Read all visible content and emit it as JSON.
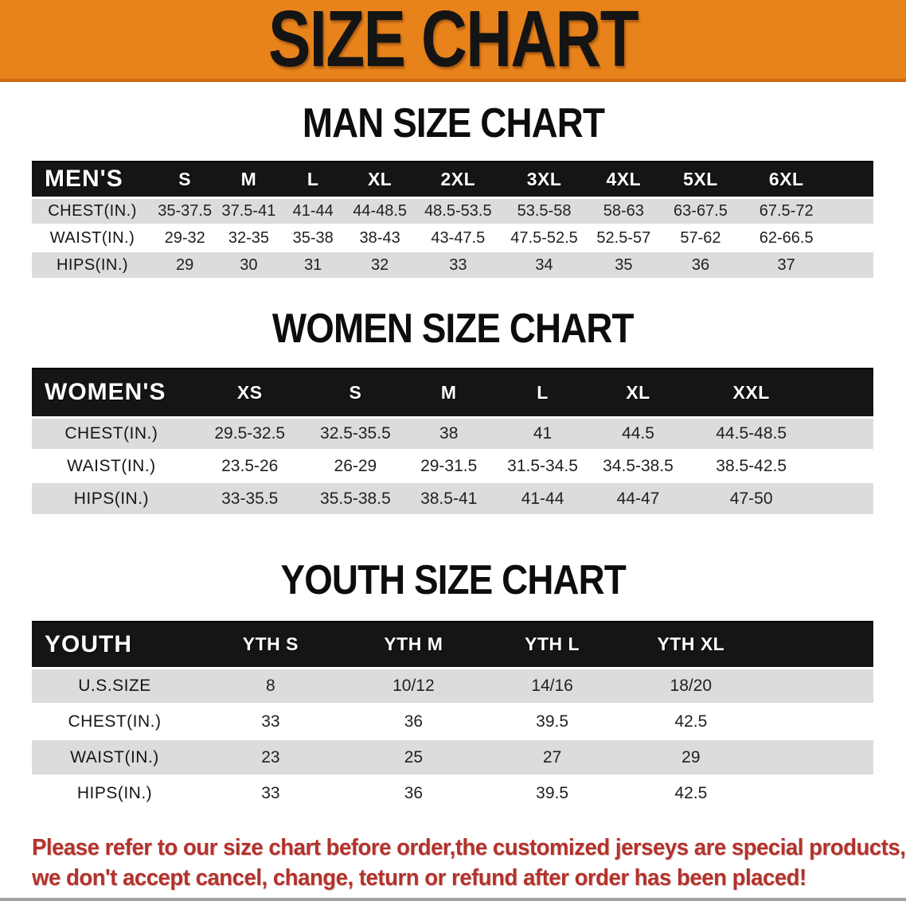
{
  "banner": {
    "title": "SIZE CHART",
    "bg_color": "#e8831c",
    "edge_color": "#cf6b10"
  },
  "sections": [
    {
      "id": "men",
      "heading": "MAN SIZE CHART",
      "table": {
        "group_label": "MEN'S",
        "size_columns": [
          "S",
          "M",
          "L",
          "XL",
          "2XL",
          "3XL",
          "4XL",
          "5XL",
          "6XL"
        ],
        "rows": [
          {
            "label": "CHEST(IN.)",
            "values": [
              "35-37.5",
              "37.5-41",
              "41-44",
              "44-48.5",
              "48.5-53.5",
              "53.5-58",
              "58-63",
              "63-67.5",
              "67.5-72"
            ]
          },
          {
            "label": "WAIST(IN.)",
            "values": [
              "29-32",
              "32-35",
              "35-38",
              "38-43",
              "43-47.5",
              "47.5-52.5",
              "52.5-57",
              "57-62",
              "62-66.5"
            ]
          },
          {
            "label": "HIPS(IN.)",
            "values": [
              "29",
              "30",
              "31",
              "32",
              "33",
              "34",
              "35",
              "36",
              "37"
            ]
          }
        ]
      }
    },
    {
      "id": "women",
      "heading": "WOMEN SIZE CHART",
      "table": {
        "group_label": "WOMEN'S",
        "size_columns": [
          "XS",
          "S",
          "M",
          "L",
          "XL",
          "XXL"
        ],
        "rows": [
          {
            "label": "CHEST(IN.)",
            "values": [
              "29.5-32.5",
              "32.5-35.5",
              "38",
              "41",
              "44.5",
              "44.5-48.5"
            ]
          },
          {
            "label": "WAIST(IN.)",
            "values": [
              "23.5-26",
              "26-29",
              "29-31.5",
              "31.5-34.5",
              "34.5-38.5",
              "38.5-42.5"
            ]
          },
          {
            "label": "HIPS(IN.)",
            "values": [
              "33-35.5",
              "35.5-38.5",
              "38.5-41",
              "41-44",
              "44-47",
              "47-50"
            ]
          }
        ]
      }
    },
    {
      "id": "youth",
      "heading": "YOUTH SIZE CHART",
      "table": {
        "group_label": "YOUTH",
        "size_columns": [
          "YTH S",
          "YTH M",
          "YTH L",
          "YTH XL"
        ],
        "rows": [
          {
            "label": "U.S.SIZE",
            "values": [
              "8",
              "10/12",
              "14/16",
              "18/20"
            ]
          },
          {
            "label": "CHEST(IN.)",
            "values": [
              "33",
              "36",
              "39.5",
              "42.5"
            ]
          },
          {
            "label": "WAIST(IN.)",
            "values": [
              "23",
              "25",
              "27",
              "29"
            ]
          },
          {
            "label": "HIPS(IN.)",
            "values": [
              "33",
              "36",
              "39.5",
              "42.5"
            ]
          }
        ]
      }
    }
  ],
  "footer": {
    "line1": "Please refer to our size chart before order,the customized jerseys are special products,",
    "line2": "we don't accept cancel, change, teturn or refund after order has been placed!",
    "text_color": "#b3322c"
  }
}
